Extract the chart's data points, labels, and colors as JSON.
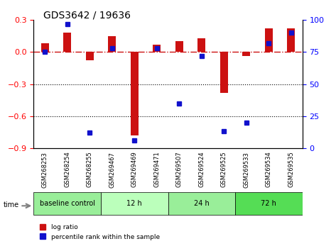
{
  "title": "GDS3642 / 19636",
  "samples": [
    "GSM268253",
    "GSM268254",
    "GSM268255",
    "GSM269467",
    "GSM269469",
    "GSM269471",
    "GSM269507",
    "GSM269524",
    "GSM269525",
    "GSM269533",
    "GSM269534",
    "GSM269535"
  ],
  "log_ratio": [
    0.08,
    0.18,
    -0.08,
    0.15,
    -0.78,
    0.07,
    0.1,
    0.13,
    -0.38,
    -0.04,
    0.22,
    0.22
  ],
  "percentile": [
    0.75,
    0.97,
    0.12,
    0.78,
    0.06,
    0.78,
    0.35,
    0.72,
    0.13,
    0.2,
    0.82,
    0.9
  ],
  "groups": [
    {
      "label": "baseline control",
      "start": 0,
      "end": 3,
      "color": "#99ee99"
    },
    {
      "label": "12 h",
      "start": 3,
      "end": 6,
      "color": "#bbffbb"
    },
    {
      "label": "24 h",
      "start": 6,
      "end": 9,
      "color": "#99ee99"
    },
    {
      "label": "72 h",
      "start": 9,
      "end": 12,
      "color": "#55dd55"
    }
  ],
  "bar_color": "#cc1111",
  "dot_color": "#1111cc",
  "ylim_left": [
    -0.9,
    0.3
  ],
  "ylim_right": [
    0,
    100
  ],
  "yticks_left": [
    -0.9,
    -0.6,
    -0.3,
    0.0,
    0.3
  ],
  "yticks_right": [
    0,
    25,
    50,
    75,
    100
  ],
  "hline_y": 0.0,
  "dotted_lines": [
    -0.3,
    -0.6
  ],
  "background_color": "#ffffff"
}
